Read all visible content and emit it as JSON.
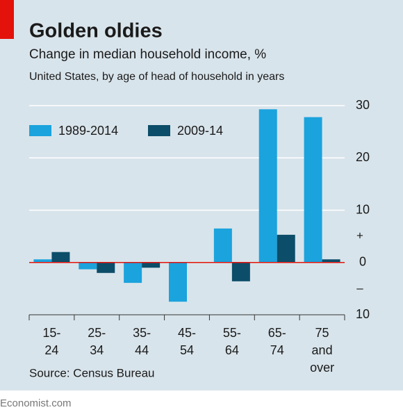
{
  "chart_data": {
    "type": "bar",
    "title": "Golden oldies",
    "subtitle": "Change in median household income, %",
    "description": "United States, by age of head of household in years",
    "source": "Source: Census Bureau",
    "footer": "Economist.com",
    "categories": [
      [
        "15-",
        "24"
      ],
      [
        "25-",
        "34"
      ],
      [
        "35-",
        "44"
      ],
      [
        "45-",
        "54"
      ],
      [
        "55-",
        "64"
      ],
      [
        "65-",
        "74"
      ],
      [
        "75",
        "and",
        "over"
      ]
    ],
    "series": [
      {
        "name": "1989-2014",
        "color": "#1ba3dd",
        "values": [
          0.6,
          -1.3,
          -3.9,
          -7.5,
          6.5,
          29.3,
          27.8
        ]
      },
      {
        "name": "2009-14",
        "color": "#0c4d69",
        "values": [
          2.0,
          -2.0,
          -1.0,
          0,
          -3.6,
          5.3,
          0.6
        ]
      }
    ],
    "ylim": [
      -10,
      30
    ],
    "yticks": [
      30,
      20,
      10,
      0,
      {
        "value": -10,
        "label": "10"
      }
    ],
    "annotations": [
      {
        "text": "+",
        "value": 5
      },
      {
        "text": "–",
        "value": -5
      }
    ],
    "grid": true,
    "legend": "top-left"
  }
}
